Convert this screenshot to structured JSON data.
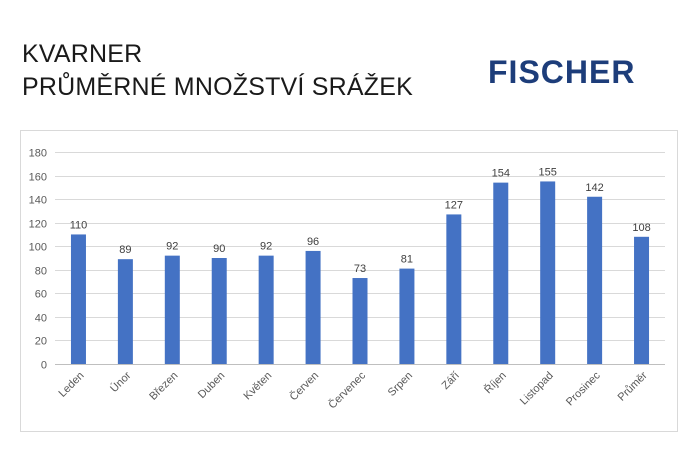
{
  "header": {
    "title_line1": "KVARNER",
    "title_line2": "PRŮMĚRNÉ MNOŽSTVÍ SRÁŽEK",
    "logo_text": "FISCHER"
  },
  "colors": {
    "bar": "#4472c4",
    "grid": "#d9d9d9",
    "logo": "#1d3d7a"
  },
  "chart_data": {
    "type": "bar",
    "categories": [
      "Leden",
      "Únor",
      "Březen",
      "Duben",
      "Květen",
      "Červen",
      "Červenec",
      "Srpen",
      "Září",
      "Říjen",
      "Listopad",
      "Prosinec",
      "Průměr"
    ],
    "values": [
      110,
      89,
      92,
      90,
      92,
      96,
      73,
      81,
      127,
      154,
      155,
      142,
      108
    ],
    "ylim": [
      0,
      180
    ],
    "yticks": [
      0,
      20,
      40,
      60,
      80,
      100,
      120,
      140,
      160,
      180
    ],
    "grid": true,
    "legend": "none"
  }
}
